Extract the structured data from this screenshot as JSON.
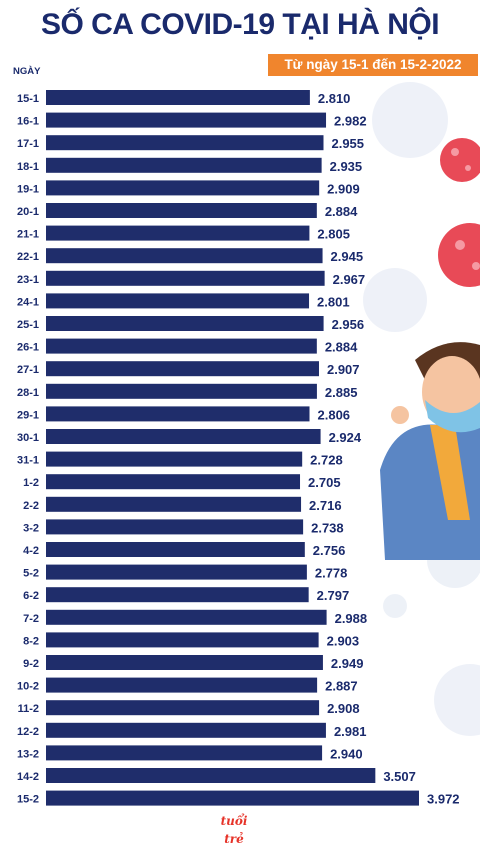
{
  "title": "SỐ CA COVID-19 TẠI HÀ NỘI",
  "subtitle": "Từ ngày 15-1 đến 15-2-2022",
  "logo_text": "tuổi trẻ",
  "colors": {
    "bar": "#1f2d6b",
    "title": "#1a2a6c",
    "subtitle_bg": "#f0852d"
  },
  "chart_data": {
    "type": "bar",
    "orientation": "horizontal",
    "ylabel": "NGÀY",
    "xlabel": "",
    "categories": [
      "15-1",
      "16-1",
      "17-1",
      "18-1",
      "19-1",
      "20-1",
      "21-1",
      "22-1",
      "23-1",
      "24-1",
      "25-1",
      "26-1",
      "27-1",
      "28-1",
      "29-1",
      "30-1",
      "31-1",
      "1-2",
      "2-2",
      "3-2",
      "4-2",
      "5-2",
      "6-2",
      "7-2",
      "8-2",
      "9-2",
      "10-2",
      "11-2",
      "12-2",
      "13-2",
      "14-2",
      "15-2"
    ],
    "values": [
      2810,
      2982,
      2955,
      2935,
      2909,
      2884,
      2805,
      2945,
      2967,
      2801,
      2956,
      2884,
      2907,
      2885,
      2806,
      2924,
      2728,
      2705,
      2716,
      2738,
      2756,
      2778,
      2797,
      2988,
      2903,
      2949,
      2887,
      2908,
      2981,
      2940,
      3507,
      3972
    ],
    "value_labels": [
      "2.810",
      "2.982",
      "2.955",
      "2.935",
      "2.909",
      "2.884",
      "2.805",
      "2.945",
      "2.967",
      "2.801",
      "2.956",
      "2.884",
      "2.907",
      "2.885",
      "2.806",
      "2.924",
      "2.728",
      "2.705",
      "2.716",
      "2.738",
      "2.756",
      "2.778",
      "2.797",
      "2.988",
      "2.903",
      "2.949",
      "2.887",
      "2.908",
      "2.981",
      "2.940",
      "3.507",
      "3.972"
    ],
    "grid": false,
    "legend": "none"
  }
}
